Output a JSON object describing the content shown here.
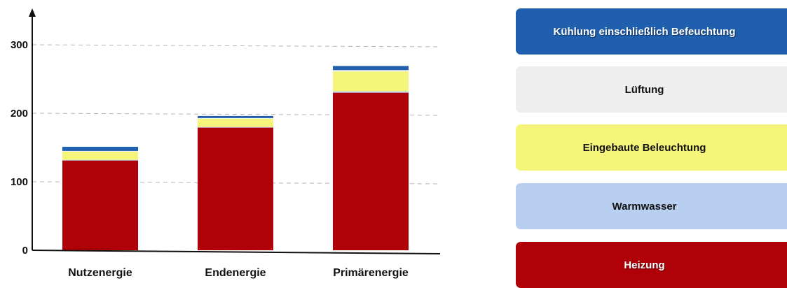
{
  "chart_data": {
    "type": "bar",
    "stacked": true,
    "categories": [
      "Nutzenergie",
      "Endenergie",
      "Primärenergie"
    ],
    "series": [
      {
        "name": "Heizung",
        "color": "#b00008",
        "values": [
          131,
          179,
          230
        ]
      },
      {
        "name": "Warmwasser",
        "color": "#b8cfef",
        "values": [
          1,
          1,
          2
        ]
      },
      {
        "name": "Eingebaute Beleuchtung",
        "color": "#f5f57a",
        "values": [
          12,
          12,
          29
        ]
      },
      {
        "name": "Lüftung",
        "color": "#eeeeee",
        "values": [
          1,
          1,
          2
        ]
      },
      {
        "name": "Kühlung einschließlich Befeuchtung",
        "color": "#1f5fae",
        "values": [
          6,
          3,
          6
        ]
      }
    ],
    "ylim": [
      0,
      350
    ],
    "yticks": [
      0,
      100,
      200,
      300
    ],
    "title": "",
    "xlabel": "",
    "ylabel": "",
    "grid": "dashed horizontal",
    "legend_placement": "right"
  }
}
